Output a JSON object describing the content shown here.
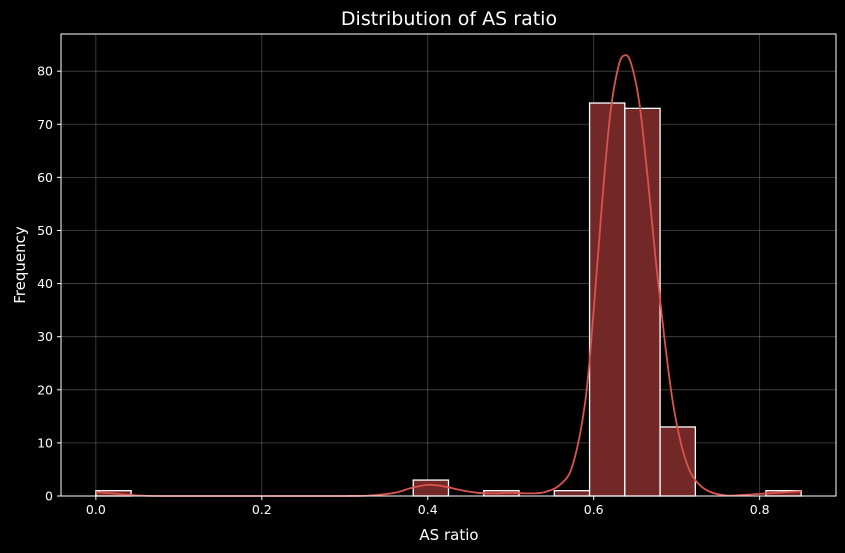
{
  "chart_data": {
    "type": "bar",
    "title": "Distribution of AS ratio",
    "xlabel": "AS ratio",
    "ylabel": "Frequency",
    "xlim": [
      -0.042,
      0.892
    ],
    "ylim": [
      0,
      87
    ],
    "xticks": [
      0.0,
      0.2,
      0.4,
      0.6,
      0.8
    ],
    "xtick_labels": [
      "0.0",
      "0.2",
      "0.4",
      "0.6",
      "0.8"
    ],
    "yticks": [
      0,
      10,
      20,
      30,
      40,
      50,
      60,
      70,
      80
    ],
    "ytick_labels": [
      "0",
      "10",
      "20",
      "30",
      "40",
      "50",
      "60",
      "70",
      "80"
    ],
    "grid": true,
    "bin_edges": [
      0.0,
      0.0425,
      0.085,
      0.1275,
      0.17,
      0.2125,
      0.255,
      0.2975,
      0.34,
      0.3825,
      0.425,
      0.4675,
      0.51,
      0.5525,
      0.595,
      0.6375,
      0.68,
      0.7225,
      0.765,
      0.8075,
      0.85
    ],
    "counts": [
      1,
      0,
      0,
      0,
      0,
      0,
      0,
      0,
      0,
      3,
      0,
      1,
      0,
      1,
      74,
      73,
      13,
      0,
      0,
      1
    ],
    "kde": {
      "x": [
        0.0,
        0.02,
        0.04,
        0.06,
        0.08,
        0.1,
        0.15,
        0.2,
        0.25,
        0.3,
        0.33,
        0.36,
        0.38,
        0.4,
        0.42,
        0.44,
        0.46,
        0.48,
        0.5,
        0.52,
        0.54,
        0.56,
        0.575,
        0.59,
        0.6,
        0.61,
        0.62,
        0.63,
        0.6375,
        0.645,
        0.655,
        0.665,
        0.675,
        0.685,
        0.695,
        0.705,
        0.715,
        0.725,
        0.74,
        0.76,
        0.78,
        0.8,
        0.82,
        0.85
      ],
      "y": [
        0.7,
        0.5,
        0.2,
        0.05,
        0.0,
        0.0,
        0.0,
        0.0,
        0.0,
        0.0,
        0.1,
        0.6,
        1.5,
        2.1,
        1.8,
        1.1,
        0.6,
        0.5,
        0.6,
        0.5,
        0.7,
        2.2,
        6.0,
        18.0,
        35.0,
        55.0,
        72.0,
        81.0,
        83.0,
        81.5,
        74.0,
        60.0,
        44.0,
        30.0,
        18.0,
        10.0,
        5.0,
        2.5,
        0.8,
        0.1,
        0.2,
        0.4,
        0.6,
        0.9
      ]
    }
  }
}
